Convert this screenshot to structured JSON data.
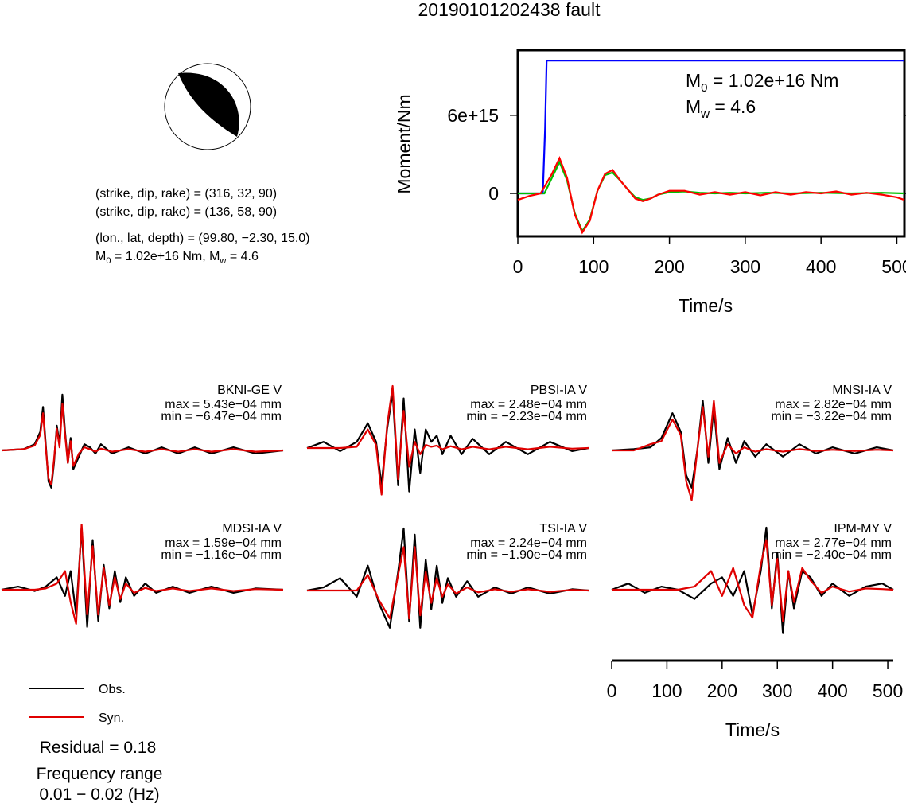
{
  "title": "20190101202438 fault",
  "mechanism": {
    "lines": [
      "(strike, dip, rake) = (316, 32, 90)",
      "(strike, dip, rake) = (136, 58, 90)",
      "(lon., lat, depth) = (99.80, −2.30, 15.0)"
    ],
    "m0_line_prefix": "M",
    "m0_line_sub": "0",
    "m0_line_suffix": " = 1.02e+16 Nm, M",
    "mw_line_sub": "w",
    "mw_line_suffix": " = 4.6",
    "colors": {
      "compression": "#000000",
      "outline": "#000000"
    }
  },
  "chart_data": [
    {
      "type": "line",
      "id": "moment-rate",
      "title": "",
      "xlabel": "Time/s",
      "ylabel": "Moment/Nm",
      "xlim": [
        0,
        510
      ],
      "ylim": [
        -3300000000000000.0,
        1.1e+16
      ],
      "xticks": [
        0,
        100,
        200,
        300,
        400,
        500
      ],
      "xtick_labels": [
        "0",
        "100",
        "200",
        "300",
        "400",
        "500"
      ],
      "yticks": [
        0,
        6000000000000000.0
      ],
      "ytick_labels": [
        "0",
        "6e+15"
      ],
      "annotation": {
        "m0_label": "M",
        "m0_sub": "0",
        "m0_value": " = 1.02e+16 Nm",
        "mw_label": "M",
        "mw_sub": "w",
        "mw_value": " = 4.6"
      },
      "series": [
        {
          "color": "#0000ff",
          "x": [
            0,
            33,
            36,
            38,
            510
          ],
          "y": [
            0,
            0,
            5000000000000000.0,
            1.02e+16,
            1.02e+16
          ]
        },
        {
          "color": "#00c000",
          "x": [
            0,
            35,
            45,
            55,
            65,
            75,
            85,
            95,
            105,
            115,
            125,
            135,
            145,
            155,
            165,
            175,
            185,
            200,
            220,
            240,
            260,
            280,
            300,
            330,
            360,
            400,
            440,
            480,
            510
          ],
          "y": [
            0,
            0,
            1200000000000000.0,
            2400000000000000.0,
            1000000000000000.0,
            -1500000000000000.0,
            -2900000000000000.0,
            -2000000000000000.0,
            200000000000000.0,
            1400000000000000.0,
            1600000000000000.0,
            1000000000000000.0,
            300000000000000.0,
            -300000000000000.0,
            -500000000000000.0,
            -400000000000000.0,
            -100000000000000.0,
            100000000000000.0,
            150000000000000.0,
            50000000000000.0,
            0,
            50000000000000.0,
            0,
            50000000000000.0,
            0,
            50000000000000.0,
            0,
            50000000000000.0,
            0
          ]
        },
        {
          "color": "#ff0000",
          "x": [
            0,
            15,
            30,
            45,
            55,
            65,
            75,
            85,
            95,
            105,
            115,
            125,
            135,
            145,
            155,
            165,
            175,
            185,
            200,
            220,
            240,
            260,
            280,
            300,
            320,
            340,
            360,
            380,
            400,
            420,
            440,
            460,
            480,
            500,
            510
          ],
          "y": [
            -500000000000000.0,
            -200000000000000.0,
            0,
            1500000000000000.0,
            2700000000000000.0,
            1200000000000000.0,
            -1600000000000000.0,
            -3000000000000000.0,
            -2100000000000000.0,
            200000000000000.0,
            1500000000000000.0,
            1800000000000000.0,
            1000000000000000.0,
            300000000000000.0,
            -400000000000000.0,
            -600000000000000.0,
            -400000000000000.0,
            -100000000000000.0,
            200000000000000.0,
            200000000000000.0,
            -100000000000000.0,
            100000000000000.0,
            -100000000000000.0,
            100000000000000.0,
            -150000000000000.0,
            100000000000000.0,
            -100000000000000.0,
            100000000000000.0,
            0,
            150000000000000.0,
            -100000000000000.0,
            50000000000000.0,
            -100000000000000.0,
            -300000000000000.0,
            -500000000000000.0
          ]
        }
      ]
    },
    {
      "type": "line",
      "id": "waveforms",
      "xlabel": "Time/s",
      "xlim": [
        0,
        510
      ],
      "xticks": [
        0,
        100,
        200,
        300,
        400,
        500
      ],
      "xtick_labels": [
        "0",
        "100",
        "200",
        "300",
        "400",
        "500"
      ],
      "legend": {
        "position": "bottom-left",
        "entries": [
          {
            "label": "Obs.",
            "color": "#000000"
          },
          {
            "label": "Syn.",
            "color": "#e00000"
          }
        ]
      },
      "stations": [
        {
          "name": "BKNI-GE V",
          "max": "max = 5.43e−04 mm",
          "min": "min = −6.47e−04 mm",
          "x": [
            0,
            40,
            60,
            70,
            75,
            80,
            85,
            90,
            95,
            100,
            105,
            110,
            115,
            120,
            125,
            130,
            135,
            140,
            145,
            150,
            160,
            170,
            180,
            200,
            230,
            260,
            290,
            320,
            350,
            380,
            420,
            460,
            510
          ],
          "obs": [
            0,
            0.02,
            0.1,
            0.3,
            0.7,
            0.1,
            -0.5,
            -0.6,
            -0.2,
            0.4,
            0.1,
            0.9,
            0.3,
            -0.2,
            0.2,
            -0.3,
            -0.2,
            -0.1,
            0.0,
            0.1,
            0.05,
            -0.05,
            0.1,
            -0.05,
            0.05,
            -0.05,
            0.05,
            -0.05,
            0.05,
            -0.05,
            0.05,
            -0.05,
            0
          ],
          "syn": [
            0,
            0.02,
            0.08,
            0.25,
            0.6,
            0.05,
            -0.45,
            -0.55,
            -0.15,
            0.35,
            0.05,
            0.75,
            0.25,
            -0.2,
            0.15,
            -0.25,
            -0.15,
            -0.05,
            0.0,
            0.05,
            0.02,
            -0.02,
            0.03,
            -0.02,
            0.02,
            -0.02,
            0.02,
            -0.02,
            0.02,
            -0.02,
            0.02,
            -0.02,
            0
          ]
        },
        {
          "name": "PBSI-IA V",
          "max": "max = 2.48e−04 mm",
          "min": "min = −2.23e−04 mm",
          "x": [
            0,
            30,
            60,
            90,
            110,
            125,
            135,
            145,
            155,
            165,
            175,
            185,
            195,
            205,
            215,
            225,
            235,
            245,
            260,
            280,
            300,
            330,
            360,
            400,
            440,
            480,
            510
          ],
          "obs": [
            0,
            0.1,
            -0.05,
            0.1,
            0.4,
            0.1,
            -0.6,
            0.3,
            0.9,
            -0.6,
            0.8,
            -0.7,
            0.3,
            -0.4,
            0.3,
            0.1,
            0.2,
            -0.1,
            0.2,
            -0.1,
            0.15,
            -0.1,
            0.1,
            -0.1,
            0.1,
            -0.05,
            0
          ],
          "syn": [
            0,
            0.0,
            0.0,
            0.02,
            0.3,
            0.05,
            -0.75,
            0.35,
            1.0,
            -0.5,
            0.6,
            -0.3,
            0.1,
            -0.1,
            0.05,
            0.02,
            0.04,
            -0.02,
            0.03,
            -0.02,
            0.02,
            -0.02,
            0.02,
            -0.02,
            0.02,
            -0.01,
            0
          ]
        },
        {
          "name": "MNSI-IA V",
          "max": "max = 2.82e−04 mm",
          "min": "min = −3.22e−04 mm",
          "x": [
            0,
            40,
            70,
            90,
            110,
            125,
            135,
            145,
            155,
            165,
            175,
            185,
            195,
            210,
            225,
            240,
            260,
            280,
            310,
            340,
            370,
            400,
            440,
            480,
            510
          ],
          "obs": [
            0,
            0.02,
            0.05,
            0.2,
            0.6,
            0.3,
            -0.4,
            -0.6,
            0.0,
            0.8,
            -0.2,
            0.7,
            -0.3,
            0.2,
            -0.2,
            0.15,
            -0.1,
            0.1,
            -0.1,
            0.1,
            -0.05,
            0.05,
            -0.05,
            0.05,
            0
          ],
          "syn": [
            0,
            0.0,
            0.1,
            0.15,
            0.5,
            0.25,
            -0.5,
            -0.8,
            0.0,
            0.7,
            -0.1,
            0.8,
            -0.2,
            0.1,
            -0.05,
            0.05,
            -0.02,
            0.02,
            -0.02,
            0.02,
            -0.01,
            0.01,
            -0.01,
            0.01,
            0
          ]
        },
        {
          "name": "MDSI-IA V",
          "max": "max = 1.59e−04 mm",
          "min": "min = −1.16e−04 mm",
          "x": [
            0,
            30,
            60,
            80,
            100,
            115,
            125,
            135,
            145,
            155,
            165,
            175,
            185,
            195,
            205,
            215,
            225,
            240,
            260,
            280,
            310,
            340,
            380,
            420,
            460,
            510
          ],
          "obs": [
            0,
            0.05,
            -0.02,
            0.05,
            0.2,
            -0.1,
            0.3,
            -0.4,
            1.0,
            -0.6,
            0.8,
            -0.5,
            0.4,
            -0.3,
            0.3,
            -0.2,
            0.2,
            -0.1,
            0.1,
            -0.05,
            0.05,
            -0.05,
            0.05,
            -0.05,
            0.02,
            0
          ],
          "syn": [
            0,
            0.0,
            0.0,
            0.02,
            0.1,
            0.3,
            -0.2,
            -0.55,
            1.05,
            -0.4,
            0.7,
            -0.4,
            0.35,
            -0.25,
            0.2,
            -0.15,
            0.1,
            -0.05,
            0.03,
            -0.02,
            0.02,
            -0.02,
            0.02,
            -0.02,
            0.01,
            0
          ]
        },
        {
          "name": "TSI-IA V",
          "max": "max = 2.24e−04 mm",
          "min": "min = −1.90e−04 mm",
          "x": [
            0,
            30,
            60,
            90,
            110,
            130,
            150,
            165,
            175,
            185,
            195,
            205,
            215,
            225,
            235,
            245,
            255,
            270,
            290,
            310,
            340,
            370,
            400,
            440,
            480,
            510
          ],
          "obs": [
            0,
            0.05,
            0.2,
            -0.1,
            0.4,
            -0.2,
            -0.6,
            0.3,
            1.0,
            -0.5,
            0.9,
            -0.6,
            0.5,
            -0.3,
            0.4,
            -0.2,
            0.2,
            -0.1,
            0.15,
            -0.1,
            0.05,
            -0.05,
            0.05,
            -0.05,
            0.02,
            0
          ],
          "syn": [
            0,
            0.0,
            0.0,
            0.0,
            0.25,
            -0.15,
            -0.45,
            0.25,
            0.7,
            -0.45,
            0.7,
            -0.4,
            0.3,
            -0.2,
            0.2,
            -0.1,
            0.1,
            -0.05,
            0.05,
            -0.03,
            0.02,
            -0.02,
            0.02,
            -0.02,
            0.01,
            0
          ]
        },
        {
          "name": "IPM-MY V",
          "max": "max = 2.77e−04 mm",
          "min": "min = −2.40e−04 mm",
          "x": [
            0,
            30,
            60,
            90,
            120,
            150,
            180,
            200,
            220,
            240,
            255,
            270,
            280,
            290,
            300,
            310,
            320,
            330,
            345,
            360,
            380,
            400,
            430,
            460,
            490,
            510
          ],
          "obs": [
            0,
            0.1,
            -0.05,
            0.05,
            0.0,
            -0.15,
            0.1,
            0.2,
            -0.1,
            0.3,
            -0.4,
            0.3,
            1.0,
            -0.3,
            0.6,
            -0.7,
            0.3,
            -0.3,
            0.3,
            0.2,
            -0.1,
            0.1,
            -0.1,
            0.05,
            0.1,
            0
          ],
          "syn": [
            0,
            0.0,
            0.0,
            0.0,
            0.0,
            0.05,
            0.3,
            -0.1,
            0.35,
            -0.25,
            -0.45,
            0.4,
            0.8,
            -0.25,
            0.5,
            -0.5,
            0.3,
            -0.2,
            0.35,
            0.15,
            -0.05,
            0.05,
            -0.03,
            0.02,
            0.01,
            0
          ]
        }
      ]
    }
  ],
  "footer": {
    "residual": "Residual = 0.18",
    "freq_label": "Frequency range",
    "freq_value": "0.01 − 0.02 (Hz)"
  }
}
